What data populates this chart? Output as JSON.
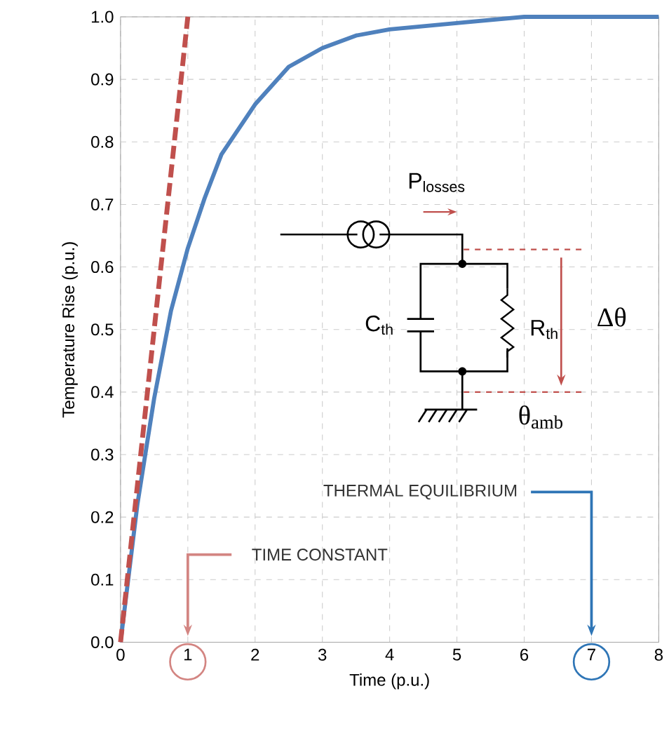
{
  "chart_data": {
    "type": "line",
    "xlabel": "Time (p.u.)",
    "ylabel": "Temperature Rise (p.u.)",
    "xlim": [
      0,
      8
    ],
    "ylim": [
      0,
      1
    ],
    "xticks": [
      0,
      1,
      2,
      3,
      4,
      5,
      6,
      7,
      8
    ],
    "yticks": [
      {
        "value": 0,
        "label": "0.0"
      },
      {
        "value": 0.1,
        "label": "0.1"
      },
      {
        "value": 0.2,
        "label": "0.2"
      },
      {
        "value": 0.3,
        "label": "0.3"
      },
      {
        "value": 0.4,
        "label": "0.4"
      },
      {
        "value": 0.5,
        "label": "0.5"
      },
      {
        "value": 0.6,
        "label": "0.6"
      },
      {
        "value": 0.7,
        "label": "0.7"
      },
      {
        "value": 0.8,
        "label": "0.8"
      },
      {
        "value": 0.9,
        "label": "0.9"
      },
      {
        "value": 1,
        "label": "1.0"
      }
    ],
    "grid": true,
    "series": [
      {
        "color": "#4f81bd",
        "x": [
          0,
          0.25,
          0.5,
          0.75,
          1,
          1.25,
          1.5,
          2,
          2.5,
          3,
          3.5,
          4,
          5,
          6,
          8
        ],
        "values": [
          0,
          0.22,
          0.39,
          0.53,
          0.63,
          0.71,
          0.78,
          0.86,
          0.92,
          0.95,
          0.97,
          0.98,
          0.99,
          1,
          1
        ]
      },
      {
        "color": "#c0504d",
        "line_style": "dashed",
        "x": [
          0,
          1
        ],
        "values": [
          0,
          1
        ]
      }
    ],
    "annotations": [
      "TIME CONSTANT",
      "THERMAL EQUILIBRIUM",
      "P$_{losses}$",
      "C$_{th}$",
      "R$_{th}$",
      "Δθ",
      "θ$_{amb}$"
    ]
  }
}
